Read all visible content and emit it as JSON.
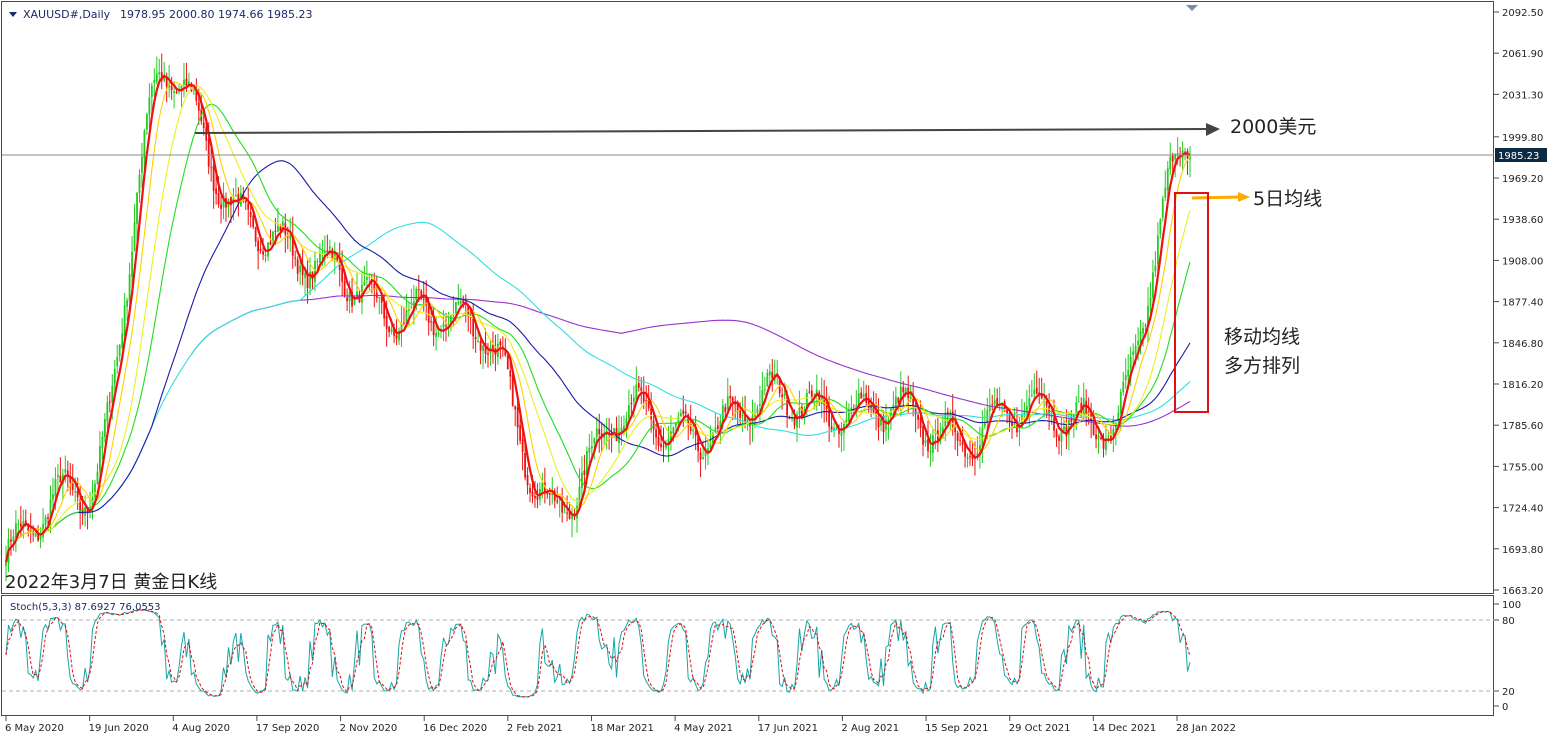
{
  "header": {
    "menu_icon": "triangle-down-icon",
    "symbol": "XAUUSD#,Daily",
    "ohlc": "1978.95 2000.80 1974.66 1985.23"
  },
  "price_axis": {
    "ticks": [
      "2092.50",
      "2061.90",
      "2031.30",
      "1999.80",
      "1969.20",
      "1938.60",
      "1908.00",
      "1877.40",
      "1846.80",
      "1816.20",
      "1785.60",
      "1755.00",
      "1724.40",
      "1693.80",
      "1663.20"
    ],
    "current_price": "1985.23"
  },
  "stoch_axis": {
    "ticks": [
      "100",
      "80",
      "20",
      "0"
    ]
  },
  "stoch_label": "Stoch(5,3,3) 87.6927 76.0553",
  "date_axis": [
    "6 May 2020",
    "19 Jun 2020",
    "4 Aug 2020",
    "17 Sep 2020",
    "2 Nov 2020",
    "16 Dec 2020",
    "2 Feb 2021",
    "18 Mar 2021",
    "4 May 2021",
    "17 Jun 2021",
    "2 Aug 2021",
    "15 Sep 2021",
    "29 Oct 2021",
    "14 Dec 2021",
    "28 Jan 2022"
  ],
  "annotations": {
    "level_2000": "2000美元",
    "ma5": "5日均线",
    "ma_line1": "移动均线",
    "ma_line2": "多方排列",
    "caption": "2022年3月7日 黄金日K线"
  },
  "colors": {
    "background": "#ffffff",
    "frame": "#4a4a4a",
    "bull_candle": "#22cc22",
    "bear_candle": "#ee1111",
    "ma5": "#ee1111",
    "ma10": "#ffd000",
    "ma20": "#e8f020",
    "ma30": "#22dd22",
    "ma60": "#1a1aaa",
    "ma120": "#33dddd",
    "ma250": "#9933cc",
    "stoch_main": "#17a6a6",
    "stoch_signal": "#dd1111",
    "annotation_arrow": "#444444",
    "ma5_arrow": "#ffaa00",
    "highlight_box": "#dd1111"
  },
  "chart_data": {
    "type": "candlestick",
    "symbol": "XAUUSD#",
    "timeframe": "Daily",
    "ylim": [
      1663.2,
      2092.5
    ],
    "key_points": [
      {
        "date": "6 May 2020",
        "close": 1690
      },
      {
        "date": "19 Jun 2020",
        "close": 1738
      },
      {
        "date": "4 Aug 2020",
        "close": 2040
      },
      {
        "date": "17 Sep 2020",
        "close": 1948
      },
      {
        "date": "2 Nov 2020",
        "close": 1895
      },
      {
        "date": "16 Dec 2020",
        "close": 1875
      },
      {
        "date": "2 Feb 2021",
        "close": 1850
      },
      {
        "date": "18 Mar 2021",
        "close": 1728
      },
      {
        "date": "4 May 2021",
        "close": 1795
      },
      {
        "date": "17 Jun 2021",
        "close": 1780
      },
      {
        "date": "2 Aug 2021",
        "close": 1810
      },
      {
        "date": "15 Sep 2021",
        "close": 1790
      },
      {
        "date": "29 Oct 2021",
        "close": 1785
      },
      {
        "date": "14 Dec 2021",
        "close": 1790
      },
      {
        "date": "28 Jan 2022",
        "close": 1795
      },
      {
        "date": "7 Mar 2022",
        "close": 1985.23
      }
    ],
    "last_bar": {
      "open": 1978.95,
      "high": 2000.8,
      "low": 1974.66,
      "close": 1985.23
    },
    "reference_level": 2000,
    "moving_averages": [
      "MA5",
      "MA10",
      "MA20",
      "MA30",
      "MA60",
      "MA120",
      "MA250"
    ],
    "stochastic": {
      "params": "5,3,3",
      "k": 87.6927,
      "d": 76.0553,
      "levels": [
        80,
        20
      ],
      "ylim": [
        0,
        100
      ]
    }
  }
}
